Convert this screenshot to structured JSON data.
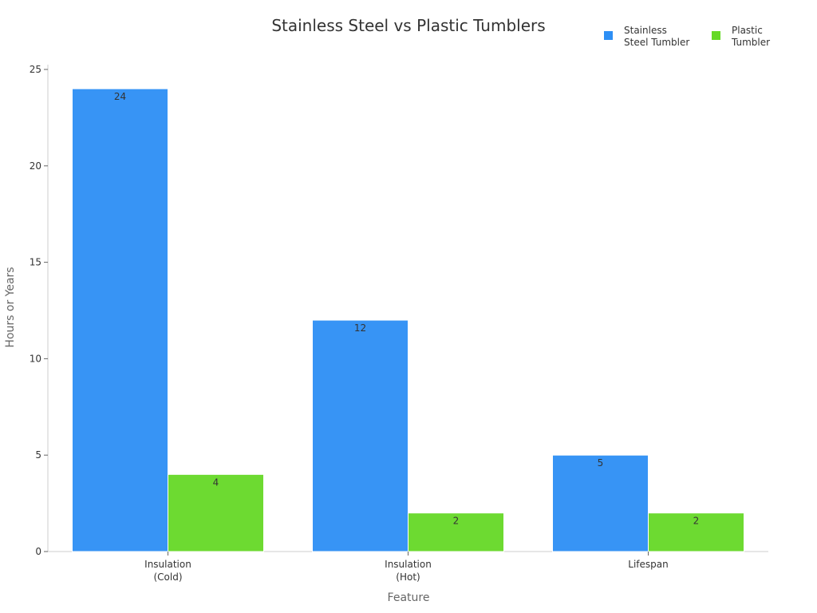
{
  "chart_data": {
    "type": "bar",
    "title": "Stainless Steel vs Plastic Tumblers",
    "xlabel": "Feature",
    "ylabel": "Hours or Years",
    "categories": [
      "Insulation (Cold)",
      "Insulation (Hot)",
      "Lifespan"
    ],
    "category_lines": [
      [
        "Insulation",
        "(Cold)"
      ],
      [
        "Insulation",
        "(Hot)"
      ],
      [
        "Lifespan"
      ]
    ],
    "series": [
      {
        "name": "Stainless Steel Tumbler",
        "color": "#2d8ff5",
        "values": [
          24,
          12,
          5
        ]
      },
      {
        "name": "Plastic Tumbler",
        "color": "#66d926",
        "values": [
          4,
          2,
          2
        ]
      }
    ],
    "ylim": [
      0,
      25
    ],
    "yticks": [
      0,
      5,
      10,
      15,
      20,
      25
    ],
    "grid": false,
    "legend_position": "top-right",
    "data_labels": true
  },
  "legend": {
    "items": [
      {
        "lines": [
          "Stainless",
          "Steel Tumbler"
        ],
        "color": "#2d8ff5"
      },
      {
        "lines": [
          "Plastic",
          "Tumbler"
        ],
        "color": "#66d926"
      }
    ]
  }
}
